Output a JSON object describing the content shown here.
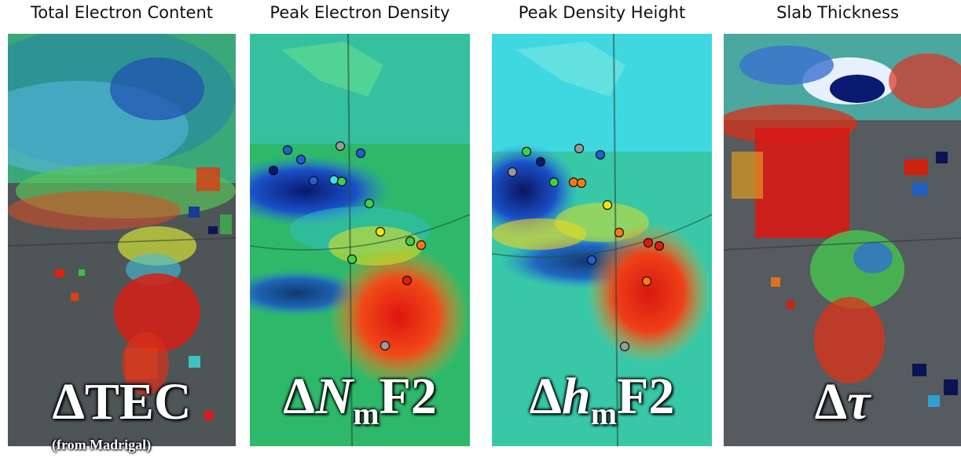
{
  "panels": [
    {
      "title": "Total Electron Content",
      "label_main": "ΔTEC"
    },
    {
      "title": "Peak Electron Density",
      "label_delta": "Δ",
      "label_var": "N",
      "label_sub": "m",
      "label_rest": "F2"
    },
    {
      "title": "Peak Density Height",
      "label_delta": "Δ",
      "label_var": "h",
      "label_sub": "m",
      "label_rest": "F2"
    },
    {
      "title": "Slab Thickness",
      "label_delta": "Δ",
      "label_var": "τ"
    }
  ],
  "source_note": "(from Madrigal)",
  "colors": {
    "red": "#e01a10",
    "orange": "#ff7a10",
    "yellow": "#f2e21a",
    "green": "#3ed24a",
    "cyan": "#3fe0e0",
    "blue": "#1f5fd8",
    "navy": "#081a70",
    "gray_land": "#5a5a5a"
  },
  "stations": {
    "panel2": [
      {
        "c": "blue"
      },
      {
        "c": "gray"
      },
      {
        "c": "blue"
      },
      {
        "c": "blue"
      },
      {
        "c": "navy"
      },
      {
        "c": "blue"
      },
      {
        "c": "cyan"
      },
      {
        "c": "green"
      },
      {
        "c": "green"
      },
      {
        "c": "yellow"
      },
      {
        "c": "green"
      },
      {
        "c": "orange"
      },
      {
        "c": "green"
      },
      {
        "c": "red"
      },
      {
        "c": "gray"
      }
    ],
    "panel3": [
      {
        "c": "green"
      },
      {
        "c": "gray"
      },
      {
        "c": "blue"
      },
      {
        "c": "navy"
      },
      {
        "c": "gray"
      },
      {
        "c": "green"
      },
      {
        "c": "orange"
      },
      {
        "c": "orange"
      },
      {
        "c": "yellow"
      },
      {
        "c": "orange"
      },
      {
        "c": "red"
      },
      {
        "c": "red"
      },
      {
        "c": "blue"
      },
      {
        "c": "orange"
      },
      {
        "c": "gray"
      }
    ]
  }
}
